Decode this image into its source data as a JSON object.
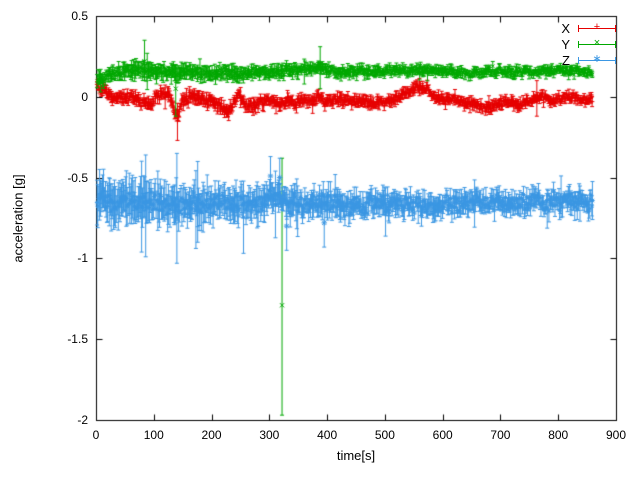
{
  "chart": {
    "xlabel": "time[s]",
    "ylabel": "acceleration [g]",
    "xlim": [
      0,
      900
    ],
    "ylim": [
      -2,
      0.5
    ],
    "xticks": [
      0,
      100,
      200,
      300,
      400,
      500,
      600,
      700,
      800,
      900
    ],
    "yticks": [
      -2,
      -1.5,
      -1,
      -0.5,
      0,
      0.5
    ],
    "background": "#ffffff",
    "axis_color": "#000000",
    "grid": false,
    "legend_position": "top-right",
    "legend": [
      {
        "label": "X",
        "color": "#e60000",
        "marker": "plus"
      },
      {
        "label": "Y",
        "color": "#00a800",
        "marker": "cross"
      },
      {
        "label": "Z",
        "color": "#3b97e3",
        "marker": "star"
      }
    ]
  },
  "chart_data": {
    "type": "scatter",
    "style": "errorbars",
    "x_range": [
      2,
      860
    ],
    "step": 1.4,
    "seed": 42,
    "series": [
      {
        "name": "X",
        "color": "#e60000",
        "marker": "plus",
        "noise": [
          [
            0,
            0.013
          ],
          [
            860,
            0.013
          ]
        ],
        "err": [
          [
            0,
            0.025
          ],
          [
            120,
            0.03
          ],
          [
            860,
            0.022
          ]
        ],
        "spike_prob": 0.03,
        "spike_scale": 1.8,
        "baseline": [
          [
            0,
            0.07
          ],
          [
            12,
            0.05
          ],
          [
            25,
            0.01
          ],
          [
            40,
            -0.01
          ],
          [
            60,
            0.0
          ],
          [
            80,
            -0.03
          ],
          [
            95,
            -0.05
          ],
          [
            110,
            0.01
          ],
          [
            125,
            0.02
          ],
          [
            135,
            -0.08
          ],
          [
            142,
            -0.12
          ],
          [
            150,
            -0.02
          ],
          [
            165,
            0.0
          ],
          [
            185,
            -0.02
          ],
          [
            205,
            -0.04
          ],
          [
            225,
            -0.09
          ],
          [
            235,
            -0.06
          ],
          [
            245,
            0.01
          ],
          [
            258,
            -0.04
          ],
          [
            270,
            -0.06
          ],
          [
            285,
            -0.03
          ],
          [
            300,
            -0.02
          ],
          [
            315,
            -0.05
          ],
          [
            330,
            -0.02
          ],
          [
            345,
            -0.04
          ],
          [
            360,
            -0.01
          ],
          [
            375,
            -0.03
          ],
          [
            385,
            0.02
          ],
          [
            395,
            -0.04
          ],
          [
            410,
            -0.01
          ],
          [
            430,
            -0.02
          ],
          [
            455,
            -0.03
          ],
          [
            480,
            -0.04
          ],
          [
            500,
            -0.03
          ],
          [
            520,
            -0.01
          ],
          [
            540,
            0.03
          ],
          [
            555,
            0.06
          ],
          [
            570,
            0.05
          ],
          [
            585,
            0.0
          ],
          [
            600,
            -0.02
          ],
          [
            615,
            -0.01
          ],
          [
            630,
            -0.03
          ],
          [
            650,
            -0.04
          ],
          [
            665,
            -0.06
          ],
          [
            680,
            -0.07
          ],
          [
            695,
            -0.04
          ],
          [
            710,
            -0.03
          ],
          [
            725,
            -0.05
          ],
          [
            740,
            -0.04
          ],
          [
            755,
            -0.02
          ],
          [
            770,
            0.0
          ],
          [
            785,
            -0.02
          ],
          [
            800,
            -0.01
          ],
          [
            815,
            0.0
          ],
          [
            830,
            -0.01
          ],
          [
            845,
            -0.02
          ],
          [
            860,
            -0.01
          ]
        ],
        "outliers": [
          {
            "x": 141,
            "y": -0.15,
            "lo": -0.27,
            "hi": -0.04
          },
          {
            "x": 763,
            "y": -0.01,
            "lo": -0.12,
            "hi": 0.1
          }
        ]
      },
      {
        "name": "Y",
        "color": "#00a800",
        "marker": "cross",
        "noise": [
          [
            0,
            0.012
          ],
          [
            860,
            0.012
          ]
        ],
        "err": [
          [
            0,
            0.03
          ],
          [
            80,
            0.04
          ],
          [
            400,
            0.025
          ],
          [
            860,
            0.02
          ]
        ],
        "spike_prob": 0.03,
        "spike_scale": 2.0,
        "baseline": [
          [
            0,
            0.1
          ],
          [
            10,
            0.11
          ],
          [
            22,
            0.13
          ],
          [
            35,
            0.15
          ],
          [
            55,
            0.16
          ],
          [
            75,
            0.17
          ],
          [
            95,
            0.16
          ],
          [
            115,
            0.16
          ],
          [
            135,
            0.15
          ],
          [
            155,
            0.16
          ],
          [
            175,
            0.15
          ],
          [
            200,
            0.14
          ],
          [
            225,
            0.15
          ],
          [
            250,
            0.14
          ],
          [
            275,
            0.15
          ],
          [
            300,
            0.15
          ],
          [
            320,
            0.16
          ],
          [
            340,
            0.16
          ],
          [
            360,
            0.17
          ],
          [
            380,
            0.18
          ],
          [
            395,
            0.17
          ],
          [
            410,
            0.16
          ],
          [
            430,
            0.15
          ],
          [
            455,
            0.16
          ],
          [
            480,
            0.15
          ],
          [
            505,
            0.16
          ],
          [
            530,
            0.16
          ],
          [
            555,
            0.17
          ],
          [
            580,
            0.16
          ],
          [
            605,
            0.16
          ],
          [
            630,
            0.15
          ],
          [
            655,
            0.15
          ],
          [
            680,
            0.16
          ],
          [
            705,
            0.16
          ],
          [
            730,
            0.15
          ],
          [
            755,
            0.15
          ],
          [
            780,
            0.16
          ],
          [
            800,
            0.17
          ],
          [
            815,
            0.16
          ],
          [
            830,
            0.16
          ],
          [
            845,
            0.15
          ],
          [
            860,
            0.15
          ]
        ],
        "outliers": [
          {
            "x": 322,
            "y": -1.29,
            "lo": -1.97,
            "hi": -0.38
          },
          {
            "x": 84,
            "y": 0.22,
            "lo": 0.1,
            "hi": 0.35
          },
          {
            "x": 138,
            "y": 0.05,
            "lo": -0.12,
            "hi": 0.2
          },
          {
            "x": 388,
            "y": 0.2,
            "lo": 0.05,
            "hi": 0.31
          },
          {
            "x": 8,
            "y": 0.1,
            "lo": 0.03,
            "hi": 0.17
          }
        ]
      },
      {
        "name": "Z",
        "color": "#3b97e3",
        "marker": "star",
        "noise": [
          [
            0,
            0.032
          ],
          [
            200,
            0.03
          ],
          [
            860,
            0.026
          ]
        ],
        "err": [
          [
            0,
            0.11
          ],
          [
            60,
            0.1
          ],
          [
            120,
            0.09
          ],
          [
            200,
            0.08
          ],
          [
            300,
            0.07
          ],
          [
            420,
            0.06
          ],
          [
            560,
            0.05
          ],
          [
            700,
            0.05
          ],
          [
            860,
            0.045
          ]
        ],
        "spike_prob": 0.05,
        "spike_scale": 2.1,
        "baseline": [
          [
            0,
            -0.62
          ],
          [
            20,
            -0.64
          ],
          [
            50,
            -0.66
          ],
          [
            80,
            -0.65
          ],
          [
            110,
            -0.66
          ],
          [
            140,
            -0.67
          ],
          [
            170,
            -0.66
          ],
          [
            200,
            -0.67
          ],
          [
            230,
            -0.66
          ],
          [
            260,
            -0.67
          ],
          [
            290,
            -0.65
          ],
          [
            310,
            -0.63
          ],
          [
            330,
            -0.66
          ],
          [
            360,
            -0.67
          ],
          [
            390,
            -0.68
          ],
          [
            420,
            -0.67
          ],
          [
            450,
            -0.67
          ],
          [
            480,
            -0.66
          ],
          [
            510,
            -0.67
          ],
          [
            540,
            -0.66
          ],
          [
            570,
            -0.67
          ],
          [
            600,
            -0.67
          ],
          [
            630,
            -0.66
          ],
          [
            660,
            -0.65
          ],
          [
            690,
            -0.65
          ],
          [
            720,
            -0.66
          ],
          [
            750,
            -0.65
          ],
          [
            780,
            -0.65
          ],
          [
            810,
            -0.64
          ],
          [
            840,
            -0.65
          ],
          [
            860,
            -0.65
          ]
        ],
        "outliers": [
          {
            "x": 86,
            "y": -0.66,
            "lo": -0.99,
            "hi": -0.36
          },
          {
            "x": 140,
            "y": -0.68,
            "lo": -1.03,
            "hi": -0.35
          },
          {
            "x": 176,
            "y": -0.64,
            "lo": -0.9,
            "hi": -0.4
          },
          {
            "x": 302,
            "y": -0.49,
            "lo": -0.62,
            "hi": -0.37
          },
          {
            "x": 318,
            "y": -0.5,
            "lo": -0.66,
            "hi": -0.38
          },
          {
            "x": 330,
            "y": -0.8,
            "lo": -0.95,
            "hi": -0.64
          },
          {
            "x": 395,
            "y": -0.78,
            "lo": -0.93,
            "hi": -0.6
          }
        ]
      }
    ]
  }
}
